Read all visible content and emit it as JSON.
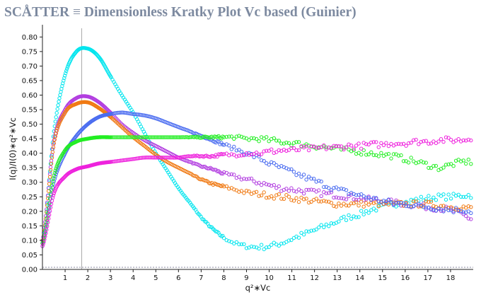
{
  "header": {
    "app_name": "SCÅTTER",
    "separator": "≡",
    "plot_title": "Dimensionless Kratky Plot Vc based (Guinier)"
  },
  "chart_data": {
    "type": "scatter",
    "title": "Dimensionless Kratky Plot Vc based (Guinier)",
    "xlabel": "q²∗Vc",
    "ylabel": "I(q)/I(0)∗q²∗Vc",
    "xlim": [
      0,
      19
    ],
    "ylim": [
      0,
      0.83
    ],
    "x_ticks": [
      1,
      2,
      3,
      4,
      5,
      6,
      7,
      8,
      9,
      10,
      11,
      12,
      13,
      14,
      15,
      16,
      17,
      18
    ],
    "x_tick_labels": [
      "1",
      "2",
      "3",
      "4",
      "5",
      "6",
      "7",
      "8",
      "9",
      "10",
      "11",
      "12",
      "13",
      "14",
      "15",
      "16",
      "17",
      "18"
    ],
    "y_ticks": [
      0,
      0.05,
      0.1,
      0.15,
      0.2,
      0.25,
      0.3,
      0.35,
      0.4,
      0.45,
      0.5,
      0.55,
      0.6,
      0.65,
      0.7,
      0.75,
      0.8
    ],
    "y_tick_labels": [
      "0.00",
      "0.05",
      "0.10",
      "0.15",
      "0.20",
      "0.25",
      "0.30",
      "0.35",
      "0.40",
      "0.45",
      "0.50",
      "0.55",
      "0.60",
      "0.65",
      "0.70",
      "0.75",
      "0.80"
    ],
    "reference_lines": {
      "vertical_x": 1.732,
      "horizontal_y": 0
    },
    "grid": false,
    "legend": "none",
    "marker": "open-circle",
    "series": [
      {
        "color": "#00e5ee",
        "x": [
          0.0,
          0.5,
          1.0,
          1.5,
          2.0,
          2.5,
          3.0,
          3.5,
          4.0,
          4.5,
          5.0,
          5.5,
          6.0,
          6.5,
          7.0,
          7.5,
          8.0,
          8.5,
          9.0,
          9.5,
          10.0,
          10.5,
          11.0,
          11.5,
          12.0,
          12.5,
          13.0,
          13.5,
          14.0,
          14.5,
          15.0,
          15.5,
          16.0,
          16.5,
          17.0,
          17.5,
          18.0,
          18.5,
          18.9
        ],
        "y": [
          0.08,
          0.47,
          0.67,
          0.75,
          0.76,
          0.73,
          0.665,
          0.6,
          0.54,
          0.47,
          0.4,
          0.34,
          0.28,
          0.23,
          0.18,
          0.14,
          0.11,
          0.09,
          0.08,
          0.077,
          0.08,
          0.09,
          0.105,
          0.12,
          0.135,
          0.15,
          0.165,
          0.18,
          0.19,
          0.205,
          0.215,
          0.225,
          0.23,
          0.24,
          0.245,
          0.25,
          0.25,
          0.255,
          0.255
        ]
      },
      {
        "color": "#b23ee0",
        "x": [
          0.0,
          0.5,
          1.0,
          1.5,
          2.0,
          2.5,
          3.0,
          3.5,
          4.0,
          4.5,
          5.0,
          5.5,
          6.0,
          6.5,
          7.0,
          7.5,
          8.0,
          8.5,
          9.0,
          9.5,
          10.0,
          10.5,
          11.0,
          11.5,
          12.0,
          12.5,
          13.0,
          13.5,
          14.0,
          14.5,
          15.0,
          15.5,
          16.0,
          16.5,
          17.0,
          17.5,
          18.0,
          18.5,
          18.9
        ],
        "y": [
          0.1,
          0.44,
          0.55,
          0.59,
          0.595,
          0.575,
          0.54,
          0.5,
          0.47,
          0.445,
          0.425,
          0.405,
          0.385,
          0.37,
          0.355,
          0.345,
          0.33,
          0.32,
          0.31,
          0.3,
          0.29,
          0.28,
          0.275,
          0.27,
          0.265,
          0.26,
          0.255,
          0.25,
          0.245,
          0.24,
          0.235,
          0.23,
          0.225,
          0.22,
          0.215,
          0.21,
          0.205,
          0.19,
          0.175
        ]
      },
      {
        "color": "#f07a14",
        "x": [
          0.0,
          0.5,
          1.0,
          1.5,
          2.0,
          2.5,
          3.0,
          3.5,
          4.0,
          4.5,
          5.0,
          5.5,
          6.0,
          6.5,
          7.0,
          7.5,
          8.0,
          8.5,
          9.0,
          9.5,
          10.0,
          10.5,
          11.0,
          11.5,
          12.0,
          12.5,
          13.0,
          13.5,
          14.0,
          14.5,
          15.0,
          15.5,
          16.0,
          16.5,
          17.0,
          17.5,
          18.0,
          18.5,
          18.9
        ],
        "y": [
          0.09,
          0.43,
          0.54,
          0.57,
          0.575,
          0.555,
          0.525,
          0.49,
          0.455,
          0.425,
          0.395,
          0.37,
          0.35,
          0.33,
          0.31,
          0.295,
          0.285,
          0.275,
          0.265,
          0.26,
          0.255,
          0.25,
          0.245,
          0.24,
          0.235,
          0.23,
          0.225,
          0.225,
          0.225,
          0.225,
          0.225,
          0.225,
          0.225,
          0.225,
          0.225,
          0.22,
          0.215,
          0.215,
          0.21
        ]
      },
      {
        "color": "#4a6cf0",
        "x": [
          0.0,
          0.5,
          1.0,
          1.5,
          2.0,
          2.5,
          3.0,
          3.5,
          4.0,
          4.5,
          5.0,
          5.5,
          6.0,
          6.5,
          7.0,
          7.5,
          8.0,
          8.5,
          9.0,
          9.5,
          10.0,
          10.5,
          11.0,
          11.5,
          12.0,
          12.5,
          13.0,
          13.5,
          14.0,
          14.5,
          15.0,
          15.5,
          16.0,
          16.5,
          17.0,
          17.5,
          18.0,
          18.5,
          18.9
        ],
        "y": [
          0.09,
          0.3,
          0.4,
          0.46,
          0.5,
          0.525,
          0.535,
          0.54,
          0.535,
          0.53,
          0.52,
          0.505,
          0.49,
          0.475,
          0.46,
          0.445,
          0.43,
          0.415,
          0.4,
          0.385,
          0.365,
          0.35,
          0.335,
          0.32,
          0.305,
          0.29,
          0.275,
          0.265,
          0.255,
          0.245,
          0.235,
          0.23,
          0.225,
          0.22,
          0.215,
          0.21,
          0.205,
          0.205,
          0.2
        ]
      },
      {
        "color": "#22ee22",
        "x": [
          0.0,
          0.5,
          1.0,
          1.5,
          2.0,
          2.5,
          3.0,
          3.5,
          4.0,
          4.5,
          5.0,
          5.5,
          6.0,
          6.5,
          7.0,
          7.5,
          8.0,
          8.5,
          9.0,
          9.5,
          10.0,
          10.5,
          11.0,
          11.5,
          12.0,
          12.5,
          13.0,
          13.5,
          14.0,
          14.5,
          15.0,
          15.5,
          16.0,
          16.5,
          17.0,
          17.5,
          18.0,
          18.5,
          18.9
        ],
        "y": [
          0.09,
          0.32,
          0.41,
          0.44,
          0.45,
          0.455,
          0.455,
          0.455,
          0.455,
          0.455,
          0.455,
          0.455,
          0.455,
          0.455,
          0.455,
          0.455,
          0.455,
          0.455,
          0.45,
          0.45,
          0.445,
          0.44,
          0.435,
          0.43,
          0.425,
          0.42,
          0.415,
          0.41,
          0.405,
          0.4,
          0.395,
          0.39,
          0.38,
          0.37,
          0.36,
          0.35,
          0.36,
          0.37,
          0.37
        ]
      },
      {
        "color": "#ee22dd",
        "x": [
          0.0,
          0.5,
          1.0,
          1.5,
          2.0,
          2.5,
          3.0,
          3.5,
          4.0,
          4.5,
          5.0,
          5.5,
          6.0,
          6.5,
          7.0,
          7.5,
          8.0,
          8.5,
          9.0,
          9.5,
          10.0,
          10.5,
          11.0,
          11.5,
          12.0,
          12.5,
          13.0,
          13.5,
          14.0,
          14.5,
          15.0,
          15.5,
          16.0,
          16.5,
          17.0,
          17.5,
          18.0,
          18.5,
          18.9
        ],
        "y": [
          0.08,
          0.26,
          0.32,
          0.345,
          0.355,
          0.365,
          0.37,
          0.375,
          0.38,
          0.385,
          0.385,
          0.385,
          0.385,
          0.39,
          0.39,
          0.39,
          0.395,
          0.395,
          0.4,
          0.4,
          0.405,
          0.41,
          0.41,
          0.415,
          0.415,
          0.42,
          0.42,
          0.425,
          0.425,
          0.43,
          0.43,
          0.435,
          0.435,
          0.44,
          0.44,
          0.445,
          0.445,
          0.445,
          0.45
        ]
      }
    ]
  }
}
